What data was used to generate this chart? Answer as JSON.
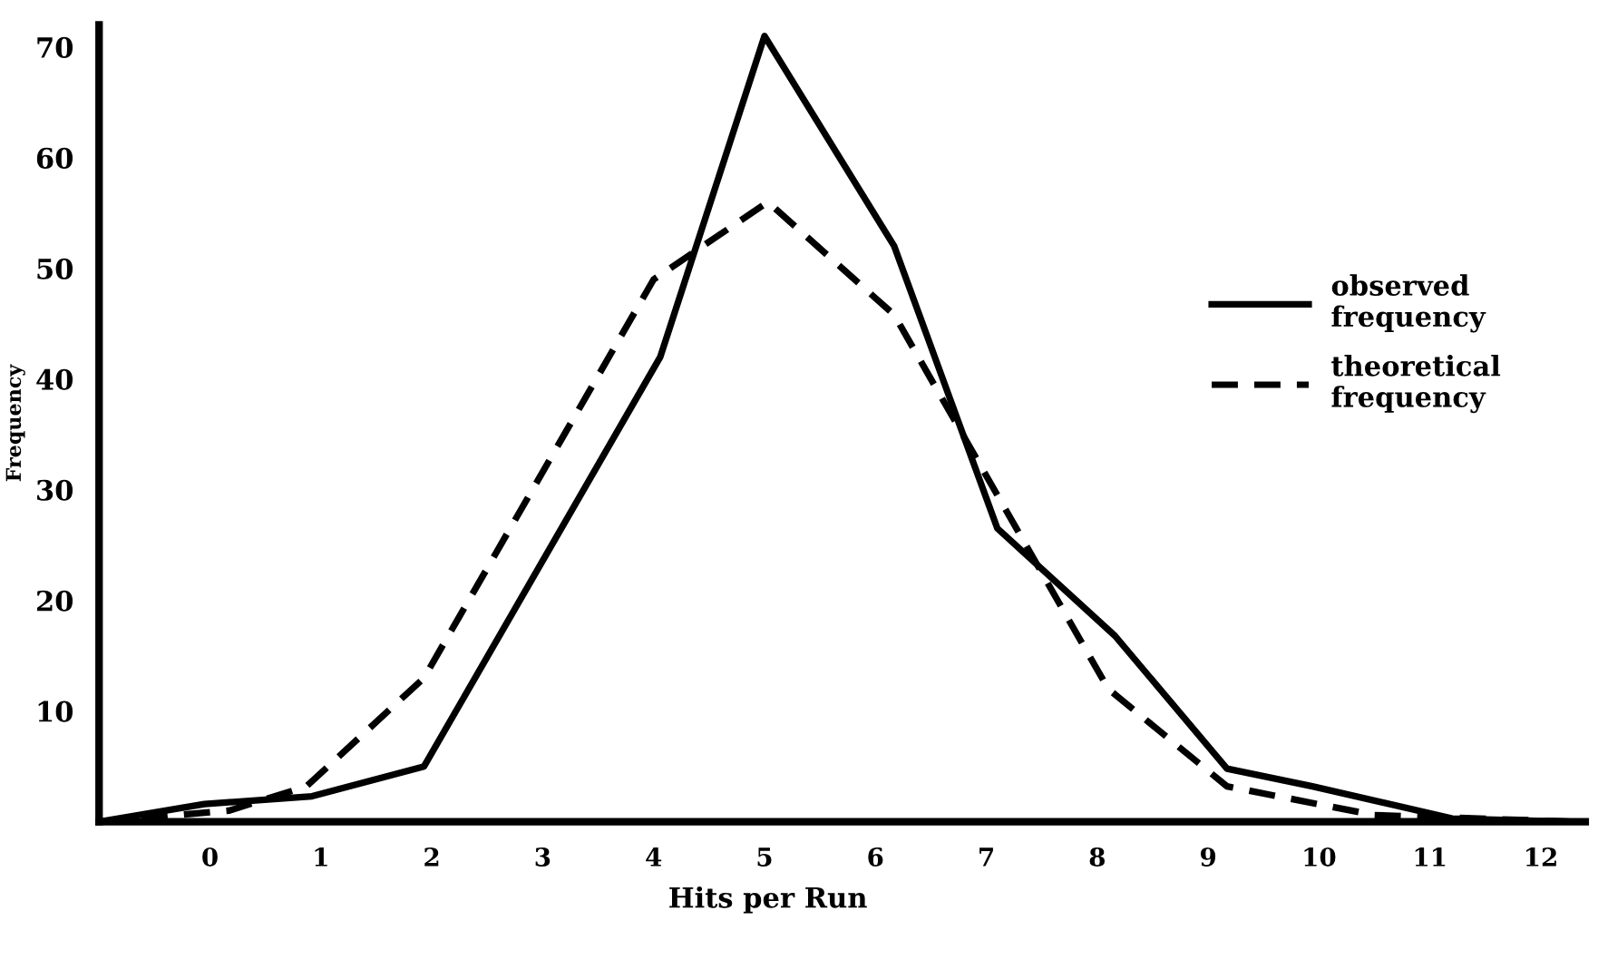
{
  "chart_data": {
    "type": "line",
    "xlabel": "Hits per Run",
    "ylabel": "Frequency",
    "xlim": [
      -1,
      12.4
    ],
    "ylim": [
      0,
      72
    ],
    "xticks": [
      0,
      1,
      2,
      3,
      4,
      5,
      6,
      7,
      8,
      9,
      10,
      11,
      12
    ],
    "yticks": [
      10,
      20,
      30,
      40,
      50,
      60,
      70
    ],
    "grid": false,
    "legend": "right",
    "marker": "none",
    "series": [
      {
        "name": "observed frequency",
        "color": "#000000",
        "line_style": "solid",
        "x": [
          -1,
          -0.05,
          0.92,
          1.93,
          4.06,
          5.0,
          6.17,
          7.1,
          8.16,
          9.17,
          9.94,
          11.2,
          12.3
        ],
        "values": [
          0,
          1.6,
          2.3,
          5,
          42,
          71,
          52,
          26.5,
          16.8,
          4.8,
          3.2,
          0.3,
          0
        ]
      },
      {
        "name": "theoretical frequency",
        "color": "#000000",
        "line_style": "dashed",
        "x": [
          -1,
          0.17,
          0.87,
          1.93,
          4.0,
          5.03,
          6.17,
          7.3,
          8.1,
          9.17,
          10.5,
          12.3
        ],
        "values": [
          0,
          1,
          3.2,
          13,
          49,
          56,
          45.8,
          26,
          12,
          3.2,
          0.6,
          0
        ]
      }
    ]
  }
}
